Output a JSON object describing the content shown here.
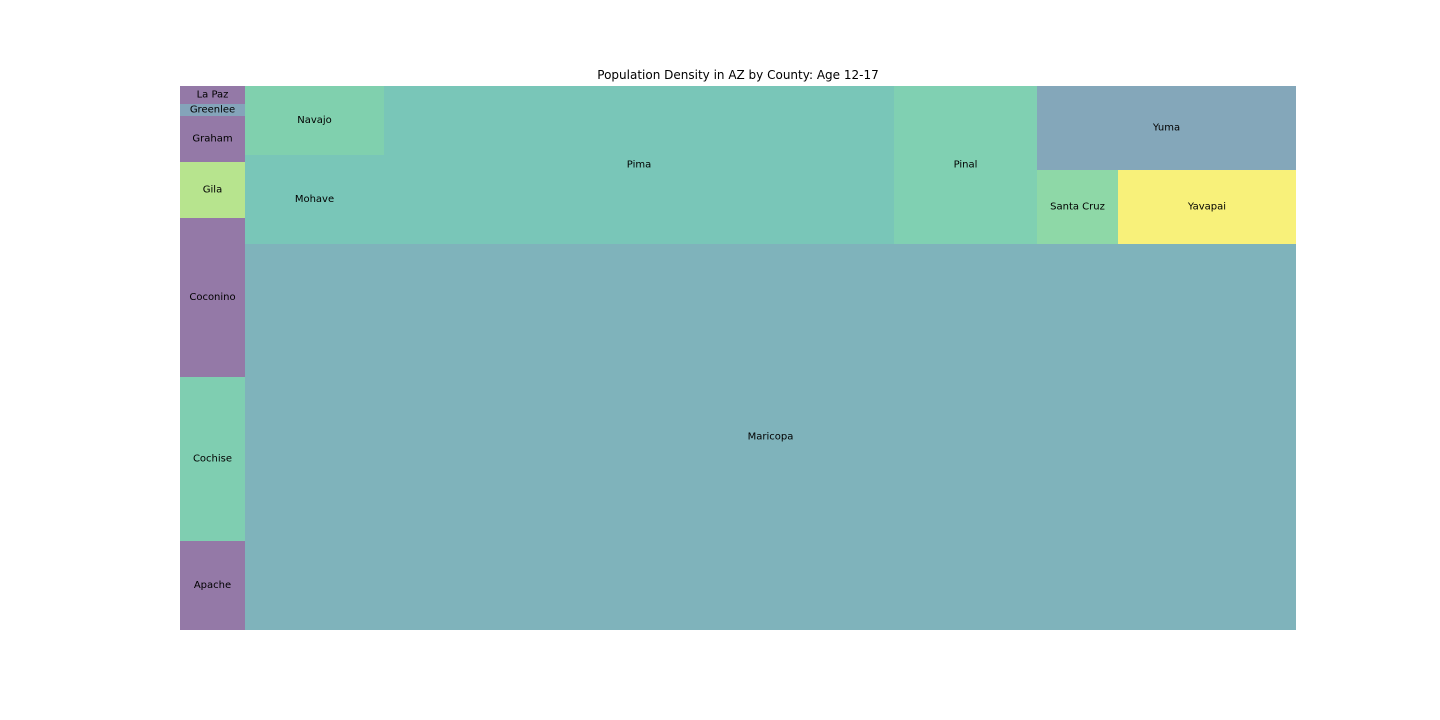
{
  "chart_data": {
    "type": "treemap",
    "title": "Population Density in AZ by County: Age 12-17",
    "tiles": [
      {
        "label": "Apache",
        "color": "#9479a7"
      },
      {
        "label": "Cochise",
        "color": "#7fceb1"
      },
      {
        "label": "Coconino",
        "color": "#9479a7"
      },
      {
        "label": "Gila",
        "color": "#b7e48e"
      },
      {
        "label": "Graham",
        "color": "#9479a7"
      },
      {
        "label": "Greenlee",
        "color": "#84a4ba"
      },
      {
        "label": "La Paz",
        "color": "#9479a7"
      },
      {
        "label": "Maricopa",
        "color": "#7fb3bb"
      },
      {
        "label": "Mohave",
        "color": "#79c6b8"
      },
      {
        "label": "Navajo",
        "color": "#80d0ae"
      },
      {
        "label": "Pima",
        "color": "#79c6b8"
      },
      {
        "label": "Pinal",
        "color": "#80d0b2"
      },
      {
        "label": "Santa Cruz",
        "color": "#8ed8a7"
      },
      {
        "label": "Yavapai",
        "color": "#f8f17a"
      },
      {
        "label": "Yuma",
        "color": "#84a7ba"
      }
    ]
  }
}
